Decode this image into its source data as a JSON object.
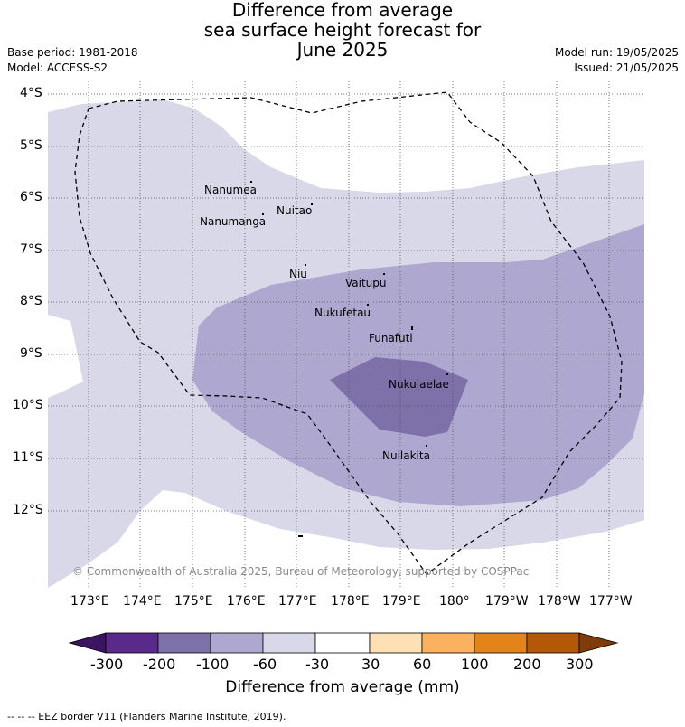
{
  "title": {
    "line1": "Difference from average",
    "line2": "sea surface height forecast for",
    "line3": "June 2025"
  },
  "meta": {
    "base_period": "Base period: 1981-2018",
    "model": "Model: ACCESS-S2",
    "model_run": "Model run: 19/05/2025",
    "issued": "Issued: 21/05/2025"
  },
  "axes": {
    "lat_labels": [
      "4°S",
      "5°S",
      "6°S",
      "7°S",
      "8°S",
      "9°S",
      "10°S",
      "11°S",
      "12°S"
    ],
    "lon_labels": [
      "173°E",
      "174°E",
      "175°E",
      "176°E",
      "177°E",
      "178°E",
      "179°E",
      "180°",
      "179°W",
      "178°W",
      "177°W"
    ]
  },
  "places": {
    "nanumea": "Nanumea",
    "nuitao": "Nuitao",
    "nanumanga": "Nanumanga",
    "niu": "Niu",
    "vaitupu": "Vaitupu",
    "nukufetau": "Nukufetau",
    "funafuti": "Funafuti",
    "nukulaelae": "Nukulaelae",
    "nuilakita": "Nuilakita"
  },
  "copyright": "© Commonwealth of Australia 2025, Bureau of Meteorology, supported by COSPPac",
  "colorbar": {
    "title": "Difference from average (mm)",
    "ticks": [
      "-300",
      "-200",
      "-100",
      "-60",
      "-30",
      "30",
      "60",
      "100",
      "200",
      "300"
    ],
    "colors": [
      "#3b1462",
      "#5a2a8a",
      "#7e71aa",
      "#aea8d0",
      "#d8d8e8",
      "#ffffff",
      "#fde0b4",
      "#fbb25e",
      "#e2841a",
      "#b35806",
      "#7f3b08"
    ]
  },
  "footnote": "--  --  -- EEZ border V11 (Flanders Marine Institute, 2019)."
}
